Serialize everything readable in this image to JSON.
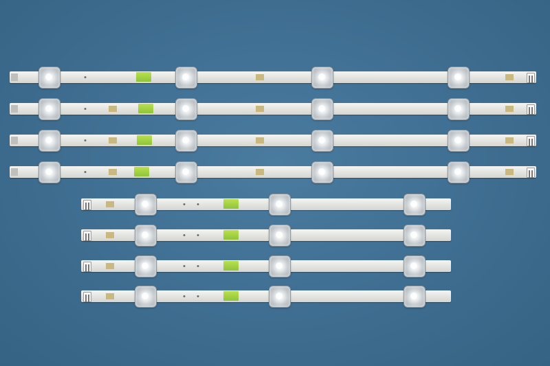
{
  "scene": {
    "description_free": true,
    "strip_count": 8,
    "colors": {
      "background": "#3f6f92",
      "strip": "#e6e6e3",
      "lens": "#dfe3e6",
      "label": "#9fd041",
      "pad": "#c9b880"
    }
  }
}
